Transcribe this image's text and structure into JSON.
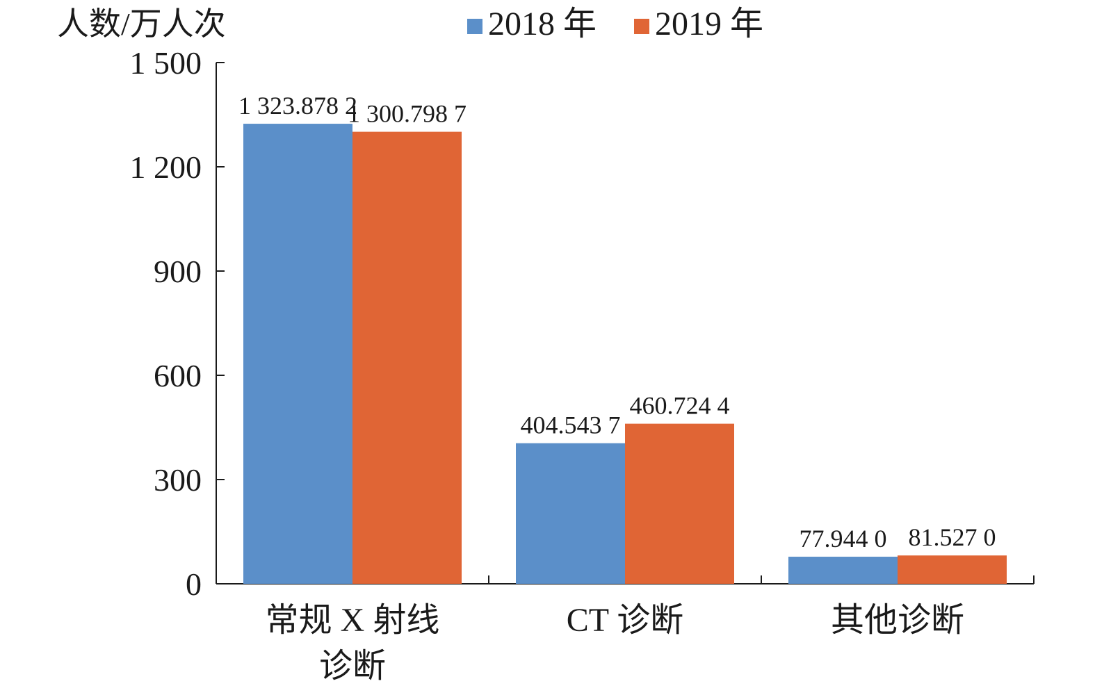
{
  "chart_data": {
    "type": "bar",
    "ylabel": "人数/万人次",
    "categories": [
      [
        "常规 X 射线",
        "诊断"
      ],
      [
        "CT 诊断"
      ],
      [
        "其他诊断"
      ]
    ],
    "series": [
      {
        "name": "2018 年",
        "color": "#5B8FC9",
        "values": [
          1323.8782,
          404.5437,
          77.944
        ],
        "labels": [
          "1 323.878 2",
          "404.543 7",
          "77.944 0"
        ]
      },
      {
        "name": "2019 年",
        "color": "#E06535",
        "values": [
          1300.7987,
          460.7244,
          81.527
        ],
        "labels": [
          "1 300.798 7",
          "460.724 4",
          "81.527 0"
        ]
      }
    ],
    "ylim": [
      0,
      1500
    ],
    "yticks": [
      0,
      300,
      600,
      900,
      1200,
      1500
    ],
    "ytick_labels": [
      "0",
      "300",
      "600",
      "900",
      "1 200",
      "1 500"
    ],
    "legend_position": "top",
    "grid": false
  }
}
